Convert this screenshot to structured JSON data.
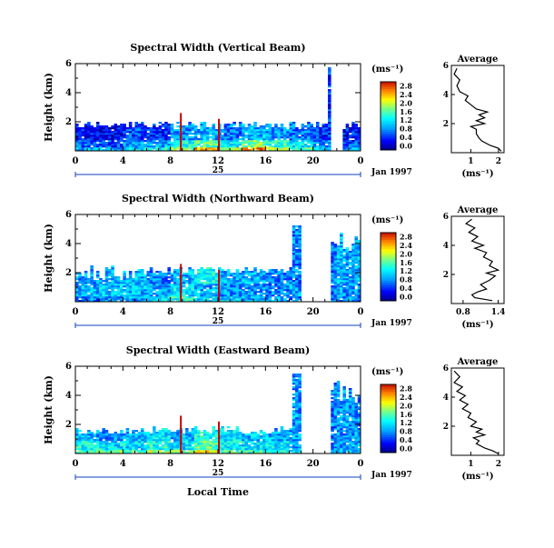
{
  "xaxis": {
    "ticks": [
      "0",
      "4",
      "8",
      "12",
      "16",
      "20",
      "0"
    ],
    "day_label": "25",
    "month_year": "Jan 1997",
    "xlabel": "Local Time"
  },
  "chart_data": [
    {
      "type": "heatmap",
      "title": "Spectral Width (Vertical Beam)",
      "ylabel": "Height (km)",
      "y_ticks": [
        {
          "v": 2,
          "label": "2"
        },
        {
          "v": 4,
          "label": "4"
        },
        {
          "v": 6,
          "label": "6"
        }
      ],
      "ylim": [
        0,
        6
      ],
      "xlim": [
        0,
        24
      ],
      "unit_label": "(ms⁻¹)",
      "colorbar_ticks": [
        "0.0",
        "0.4",
        "0.8",
        "1.2",
        "1.6",
        "2.0",
        "2.4",
        "2.8"
      ],
      "colorbar_range": [
        0,
        3.0
      ],
      "coverage": "Continuous echoes in the lowest ~2 km; isolated higher returns near 11 h and 14 h; data gap approx. 21.5-22.5 h with echoes up to 6 km near 21.5 h",
      "summary_rows": [
        {
          "h": 0.3,
          "w": [
            1.0,
            1.0,
            1.2,
            1.4,
            1.8,
            2.4,
            2.0,
            2.6,
            2.0,
            1.6,
            1.0,
            0.9,
            0.8
          ]
        },
        {
          "h": 0.8,
          "w": [
            0.7,
            0.6,
            0.9,
            1.0,
            1.4,
            1.6,
            1.3,
            1.8,
            1.5,
            1.2,
            0.8,
            0.6,
            0.6
          ]
        },
        {
          "h": 1.4,
          "w": [
            0.4,
            0.3,
            0.6,
            0.5,
            0.9,
            1.0,
            0.8,
            1.0,
            0.9,
            0.8,
            0.5,
            0.4,
            0.4
          ]
        }
      ],
      "profile": {
        "title": "Average",
        "xlabel": "(ms⁻¹)",
        "x_ticks": [
          {
            "v": 1,
            "label": "1"
          },
          {
            "v": 2,
            "label": "2"
          }
        ],
        "xlim": [
          0.3,
          2.2
        ],
        "y_ticks": [
          {
            "v": 2,
            "label": "2"
          },
          {
            "v": 4,
            "label": "4"
          },
          {
            "v": 6,
            "label": "6"
          }
        ],
        "ylim": [
          0,
          6
        ],
        "points": [
          [
            2.1,
            0.1
          ],
          [
            2.0,
            0.3
          ],
          [
            1.7,
            0.5
          ],
          [
            1.4,
            0.8
          ],
          [
            1.3,
            1.0
          ],
          [
            1.2,
            1.3
          ],
          [
            1.2,
            1.6
          ],
          [
            1.0,
            1.8
          ],
          [
            1.5,
            2.0
          ],
          [
            1.2,
            2.2
          ],
          [
            1.5,
            2.4
          ],
          [
            1.3,
            2.6
          ],
          [
            1.6,
            2.8
          ],
          [
            1.2,
            3.0
          ],
          [
            1.0,
            3.3
          ],
          [
            0.8,
            3.6
          ],
          [
            0.9,
            3.9
          ],
          [
            0.6,
            4.2
          ],
          [
            0.5,
            4.6
          ],
          [
            0.6,
            5.0
          ],
          [
            0.4,
            5.4
          ],
          [
            0.5,
            5.8
          ]
        ]
      }
    },
    {
      "type": "heatmap",
      "title": "Spectral Width (Northward Beam)",
      "ylabel": "Height (km)",
      "y_ticks": [
        {
          "v": 2,
          "label": "2"
        },
        {
          "v": 4,
          "label": "4"
        },
        {
          "v": 6,
          "label": "6"
        }
      ],
      "ylim": [
        0,
        6
      ],
      "xlim": [
        0,
        24
      ],
      "unit_label": "(ms⁻¹)",
      "colorbar_ticks": [
        "0.0",
        "0.4",
        "0.8",
        "1.2",
        "1.6",
        "2.0",
        "2.4",
        "2.8"
      ],
      "colorbar_range": [
        0,
        3.0
      ],
      "coverage": "Echoes mostly below ~2.5 km; taller columns near 9 h, 17 h and 18.5-19 h; data gap approx. 19-21.5 h; echoes up to ~5 km after 21.5 h",
      "summary_rows": [
        {
          "h": 0.4,
          "w": [
            0.8,
            0.9,
            1.0,
            1.2,
            1.4,
            1.2,
            1.2,
            1.0,
            1.0,
            0.8,
            0.8,
            0.8,
            0.8
          ]
        },
        {
          "h": 1.2,
          "w": [
            1.0,
            1.1,
            1.0,
            1.0,
            1.2,
            1.0,
            0.9,
            0.9,
            0.8,
            0.9,
            0.8,
            0.9,
            1.0
          ]
        },
        {
          "h": 2.0,
          "w": [
            0.9,
            1.0,
            1.0,
            0.8,
            1.0,
            1.4,
            1.0,
            1.0,
            0.8,
            0.8,
            0.8,
            1.0,
            0.8
          ]
        }
      ],
      "profile": {
        "title": "Average",
        "xlabel": "(ms⁻¹)",
        "x_ticks": [
          {
            "v": 0.8,
            "label": "0.8"
          },
          {
            "v": 1.4,
            "label": "1.4"
          }
        ],
        "xlim": [
          0.6,
          1.5
        ],
        "y_ticks": [
          {
            "v": 2,
            "label": "2"
          },
          {
            "v": 4,
            "label": "4"
          },
          {
            "v": 6,
            "label": "6"
          }
        ],
        "ylim": [
          0,
          6
        ],
        "points": [
          [
            1.3,
            0.2
          ],
          [
            1.0,
            0.4
          ],
          [
            0.95,
            0.6
          ],
          [
            1.05,
            0.8
          ],
          [
            1.2,
            1.0
          ],
          [
            1.1,
            1.3
          ],
          [
            1.25,
            1.6
          ],
          [
            1.35,
            1.9
          ],
          [
            1.2,
            2.1
          ],
          [
            1.4,
            2.3
          ],
          [
            1.25,
            2.6
          ],
          [
            1.3,
            2.9
          ],
          [
            1.15,
            3.2
          ],
          [
            1.2,
            3.5
          ],
          [
            1.0,
            3.8
          ],
          [
            1.15,
            4.0
          ],
          [
            0.95,
            4.3
          ],
          [
            1.05,
            4.6
          ],
          [
            0.9,
            4.9
          ],
          [
            1.0,
            5.2
          ],
          [
            0.85,
            5.5
          ],
          [
            0.95,
            5.8
          ]
        ]
      }
    },
    {
      "type": "heatmap",
      "title": "Spectral Width (Eastward Beam)",
      "ylabel": "Height (km)",
      "y_ticks": [
        {
          "v": 2,
          "label": "2"
        },
        {
          "v": 4,
          "label": "4"
        },
        {
          "v": 6,
          "label": "6"
        }
      ],
      "ylim": [
        0,
        6
      ],
      "xlim": [
        0,
        24
      ],
      "unit_label": "(ms⁻¹)",
      "colorbar_ticks": [
        "0.0",
        "0.4",
        "0.8",
        "1.2",
        "1.6",
        "2.0",
        "2.4",
        "2.8"
      ],
      "colorbar_range": [
        0,
        3.0
      ],
      "coverage": "Echoes mostly below ~1.8 km with higher plumes near 8-10 h and 14 h; tall echoes near 19 h; data gap approx. 19-21.5 h; echoes up to ~5 km after 21.5 h",
      "summary_rows": [
        {
          "h": 0.3,
          "w": [
            1.6,
            1.8,
            1.5,
            2.0,
            1.8,
            2.2,
            1.6,
            1.6,
            1.4,
            1.2,
            1.0,
            1.0,
            1.2
          ]
        },
        {
          "h": 0.9,
          "w": [
            1.4,
            1.2,
            1.2,
            1.4,
            1.2,
            1.6,
            1.3,
            1.2,
            1.2,
            1.0,
            0.9,
            1.0,
            1.0
          ]
        },
        {
          "h": 1.5,
          "w": [
            1.0,
            0.9,
            1.0,
            1.2,
            1.0,
            1.4,
            1.2,
            1.1,
            1.0,
            0.9,
            0.8,
            0.9,
            0.8
          ]
        }
      ],
      "profile": {
        "title": "Average",
        "xlabel": "(ms⁻¹)",
        "x_ticks": [
          {
            "v": 1,
            "label": "1"
          },
          {
            "v": 2,
            "label": "2"
          }
        ],
        "xlim": [
          0.3,
          2.2
        ],
        "y_ticks": [
          {
            "v": 2,
            "label": "2"
          },
          {
            "v": 4,
            "label": "4"
          },
          {
            "v": 6,
            "label": "6"
          }
        ],
        "ylim": [
          0,
          6
        ],
        "points": [
          [
            2.0,
            0.1
          ],
          [
            1.8,
            0.3
          ],
          [
            1.5,
            0.5
          ],
          [
            1.2,
            0.8
          ],
          [
            1.3,
            1.0
          ],
          [
            1.1,
            1.2
          ],
          [
            1.5,
            1.4
          ],
          [
            1.2,
            1.6
          ],
          [
            1.4,
            1.8
          ],
          [
            1.0,
            2.0
          ],
          [
            1.2,
            2.3
          ],
          [
            0.9,
            2.6
          ],
          [
            1.0,
            2.9
          ],
          [
            0.7,
            3.2
          ],
          [
            0.9,
            3.5
          ],
          [
            0.6,
            3.8
          ],
          [
            0.8,
            4.1
          ],
          [
            0.5,
            4.4
          ],
          [
            0.7,
            4.7
          ],
          [
            0.4,
            5.0
          ],
          [
            0.6,
            5.4
          ],
          [
            0.4,
            5.8
          ]
        ]
      }
    }
  ]
}
